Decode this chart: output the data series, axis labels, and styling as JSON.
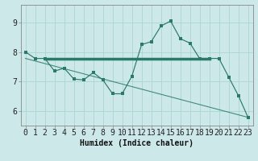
{
  "xlabel": "Humidex (Indice chaleur)",
  "bg_color": "#cce8e8",
  "grid_color": "#aad4d4",
  "line_color": "#2a7a6a",
  "xlim": [
    -0.5,
    23.5
  ],
  "ylim": [
    5.5,
    9.6
  ],
  "yticks": [
    6,
    7,
    8,
    9
  ],
  "xticks": [
    0,
    1,
    2,
    3,
    4,
    5,
    6,
    7,
    8,
    9,
    10,
    11,
    12,
    13,
    14,
    15,
    16,
    17,
    18,
    19,
    20,
    21,
    22,
    23
  ],
  "curve1_x": [
    0,
    1,
    2,
    3,
    4,
    5,
    6,
    7,
    8,
    9,
    10,
    11,
    12,
    13,
    14,
    15,
    16,
    17,
    18,
    19,
    20,
    21,
    22,
    23
  ],
  "curve1_y": [
    8.0,
    7.78,
    7.78,
    7.35,
    7.45,
    7.08,
    7.05,
    7.3,
    7.05,
    6.58,
    6.58,
    7.18,
    8.25,
    8.35,
    8.88,
    9.05,
    8.45,
    8.3,
    7.78,
    7.78,
    7.78,
    7.15,
    6.52,
    5.78
  ],
  "trend_x": [
    0,
    23
  ],
  "trend_y": [
    7.78,
    5.78
  ],
  "hline_x": [
    2,
    19
  ],
  "hline_y": [
    7.78,
    7.78
  ],
  "tick_fontsize": 7,
  "xlabel_fontsize": 7
}
